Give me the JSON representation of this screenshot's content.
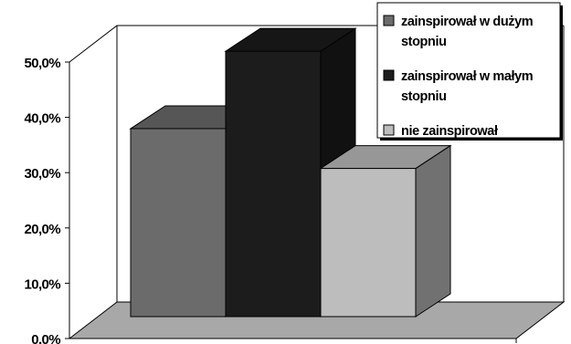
{
  "chart_data": {
    "type": "bar",
    "categories": [
      ""
    ],
    "series": [
      {
        "name": "zainspirował w dużym stopniu",
        "name_lines": [
          "zainspirował w dużym",
          "stopniu"
        ],
        "values": [
          34.0
        ],
        "color": "#6b6b6b"
      },
      {
        "name": "zainspirował w małym stopniu",
        "name_lines": [
          "zainspirował w małym",
          "stopniu"
        ],
        "values": [
          48.0
        ],
        "color": "#1c1c1c"
      },
      {
        "name": "nie zainspirował",
        "name_lines": [
          "nie zainspirował"
        ],
        "values": [
          26.8
        ],
        "color": "#bdbdbd"
      }
    ],
    "ylim": [
      0,
      50
    ],
    "y_ticks": [
      "0,0%",
      "10,0%",
      "20,0%",
      "30,0%",
      "40,0%",
      "50,0%"
    ],
    "title": "",
    "xlabel": "",
    "ylabel": "",
    "legend_position": "top-right",
    "three_d": true,
    "floor_color": "#a8a8a8"
  }
}
